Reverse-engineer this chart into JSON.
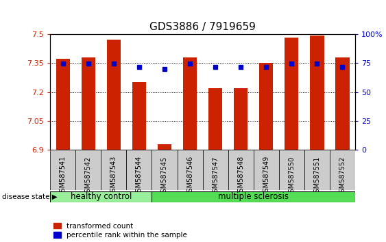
{
  "title": "GDS3886 / 7919659",
  "samples": [
    "GSM587541",
    "GSM587542",
    "GSM587543",
    "GSM587544",
    "GSM587545",
    "GSM587546",
    "GSM587547",
    "GSM587548",
    "GSM587549",
    "GSM587550",
    "GSM587551",
    "GSM587552"
  ],
  "bar_values": [
    7.37,
    7.38,
    7.47,
    7.25,
    6.93,
    7.38,
    7.22,
    7.22,
    7.35,
    7.48,
    7.49,
    7.38
  ],
  "dot_values": [
    7.345,
    7.345,
    7.345,
    7.328,
    7.32,
    7.345,
    7.328,
    7.33,
    7.328,
    7.345,
    7.345,
    7.33
  ],
  "ylim_left": [
    6.9,
    7.5
  ],
  "ylim_right": [
    0,
    100
  ],
  "yticks_left": [
    6.9,
    7.05,
    7.2,
    7.35,
    7.5
  ],
  "yticks_right": [
    0,
    25,
    50,
    75,
    100
  ],
  "ytick_labels_right": [
    "0",
    "25",
    "50",
    "75",
    "100%"
  ],
  "bar_color": "#CC2200",
  "dot_color": "#0000CC",
  "bg_color": "#ffffff",
  "group_labels": [
    "healthy control",
    "multiple sclerosis"
  ],
  "group_boundaries": [
    0,
    4,
    12
  ],
  "group_colors": [
    "#99EE99",
    "#55DD55"
  ],
  "disease_state_label": "disease state",
  "legend_items": [
    "transformed count",
    "percentile rank within the sample"
  ],
  "left_tick_color": "#CC2200",
  "right_tick_color": "#0000CC",
  "title_fontsize": 11,
  "tick_fontsize": 8,
  "sample_fontsize": 7
}
